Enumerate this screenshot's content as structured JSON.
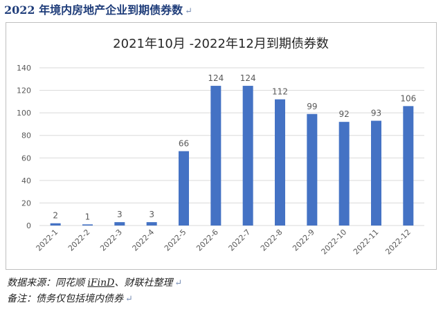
{
  "heading": {
    "text": "2022 年境内房地产企业到期债券数",
    "mark": "↵"
  },
  "source_note": {
    "prefix": "数据来源：同花顺 ",
    "underlined": "iFinD",
    "suffix": "、财联社整理",
    "mark": "↵"
  },
  "remark_note": {
    "text": "备注：债务仅包括境内债券",
    "mark": "↵"
  },
  "colors": {
    "bar": "#4472c4",
    "grid": "#d9d9d9",
    "text": "#595959",
    "title": "#262626"
  },
  "chart_data": {
    "type": "bar",
    "title": "2021年10月 -2022年12月到期债券数",
    "categories": [
      "2022-1",
      "2022-2",
      "2022-3",
      "2022-4",
      "2022-5",
      "2022-6",
      "2022-7",
      "2022-8",
      "2022-9",
      "2022-10",
      "2022-11",
      "2022-12"
    ],
    "values": [
      2,
      1,
      3,
      3,
      66,
      124,
      124,
      112,
      99,
      92,
      93,
      106
    ],
    "data_labels": [
      "2",
      "1",
      "3",
      "3",
      "66",
      "124",
      "124",
      "112",
      "99",
      "92",
      "93",
      "106"
    ],
    "ylim": [
      0,
      140
    ],
    "yticks": [
      "0",
      "20",
      "40",
      "60",
      "80",
      "100",
      "120",
      "140"
    ],
    "xlabel": "",
    "ylabel": "",
    "grid": true
  }
}
